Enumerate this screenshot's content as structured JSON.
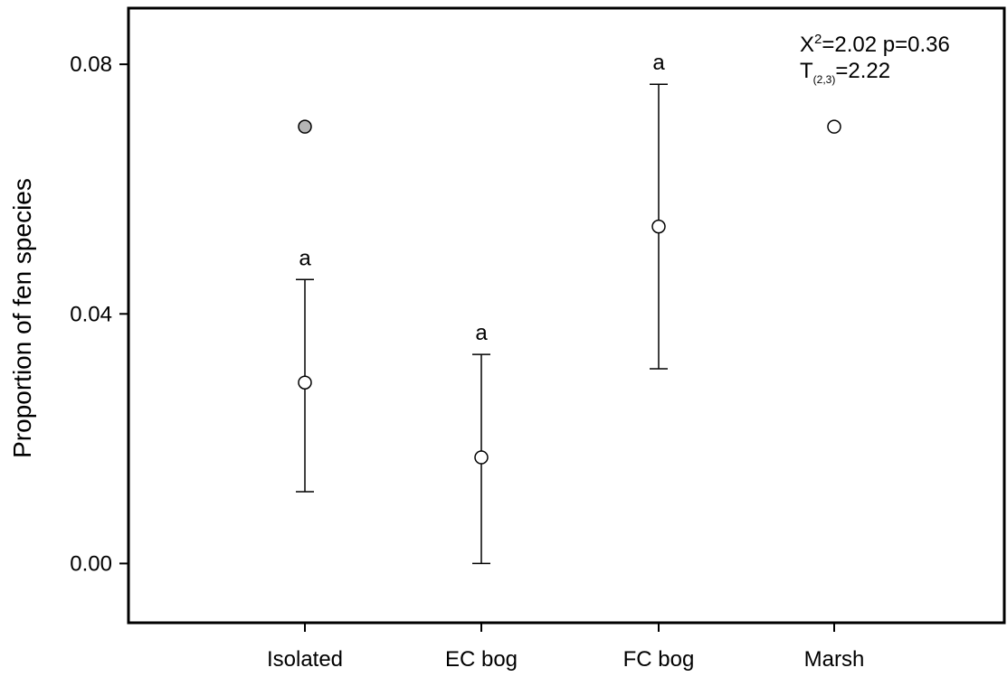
{
  "chart_data": {
    "type": "scatter",
    "title": "",
    "xlabel": "",
    "ylabel": "Proportion of fen species",
    "categories": [
      "Isolated",
      "EC bog",
      "FC bog",
      "Marsh"
    ],
    "ylim": [
      -0.0095,
      0.089
    ],
    "yticks": [
      "0.00",
      "0.04",
      "0.08"
    ],
    "yticks_values": [
      0.0,
      0.04,
      0.08
    ],
    "grid": false,
    "series": [
      {
        "values": [
          0.029,
          0.017,
          0.054,
          0.07
        ],
        "error_low": [
          0.0115,
          0.0,
          0.0312,
          null
        ],
        "error_high": [
          0.0455,
          0.0335,
          0.0768,
          null
        ]
      }
    ],
    "outliers": [
      {
        "category": "Isolated",
        "value": 0.07
      }
    ],
    "significance_letters": [
      "a",
      "a",
      "a",
      ""
    ],
    "annotations": {
      "chi_base": "X",
      "chi_sup": "2",
      "chi_rest": "=2.02 p=0.36",
      "t_base": "T",
      "t_sub": "(2,3)",
      "t_rest": "=2.22"
    }
  }
}
